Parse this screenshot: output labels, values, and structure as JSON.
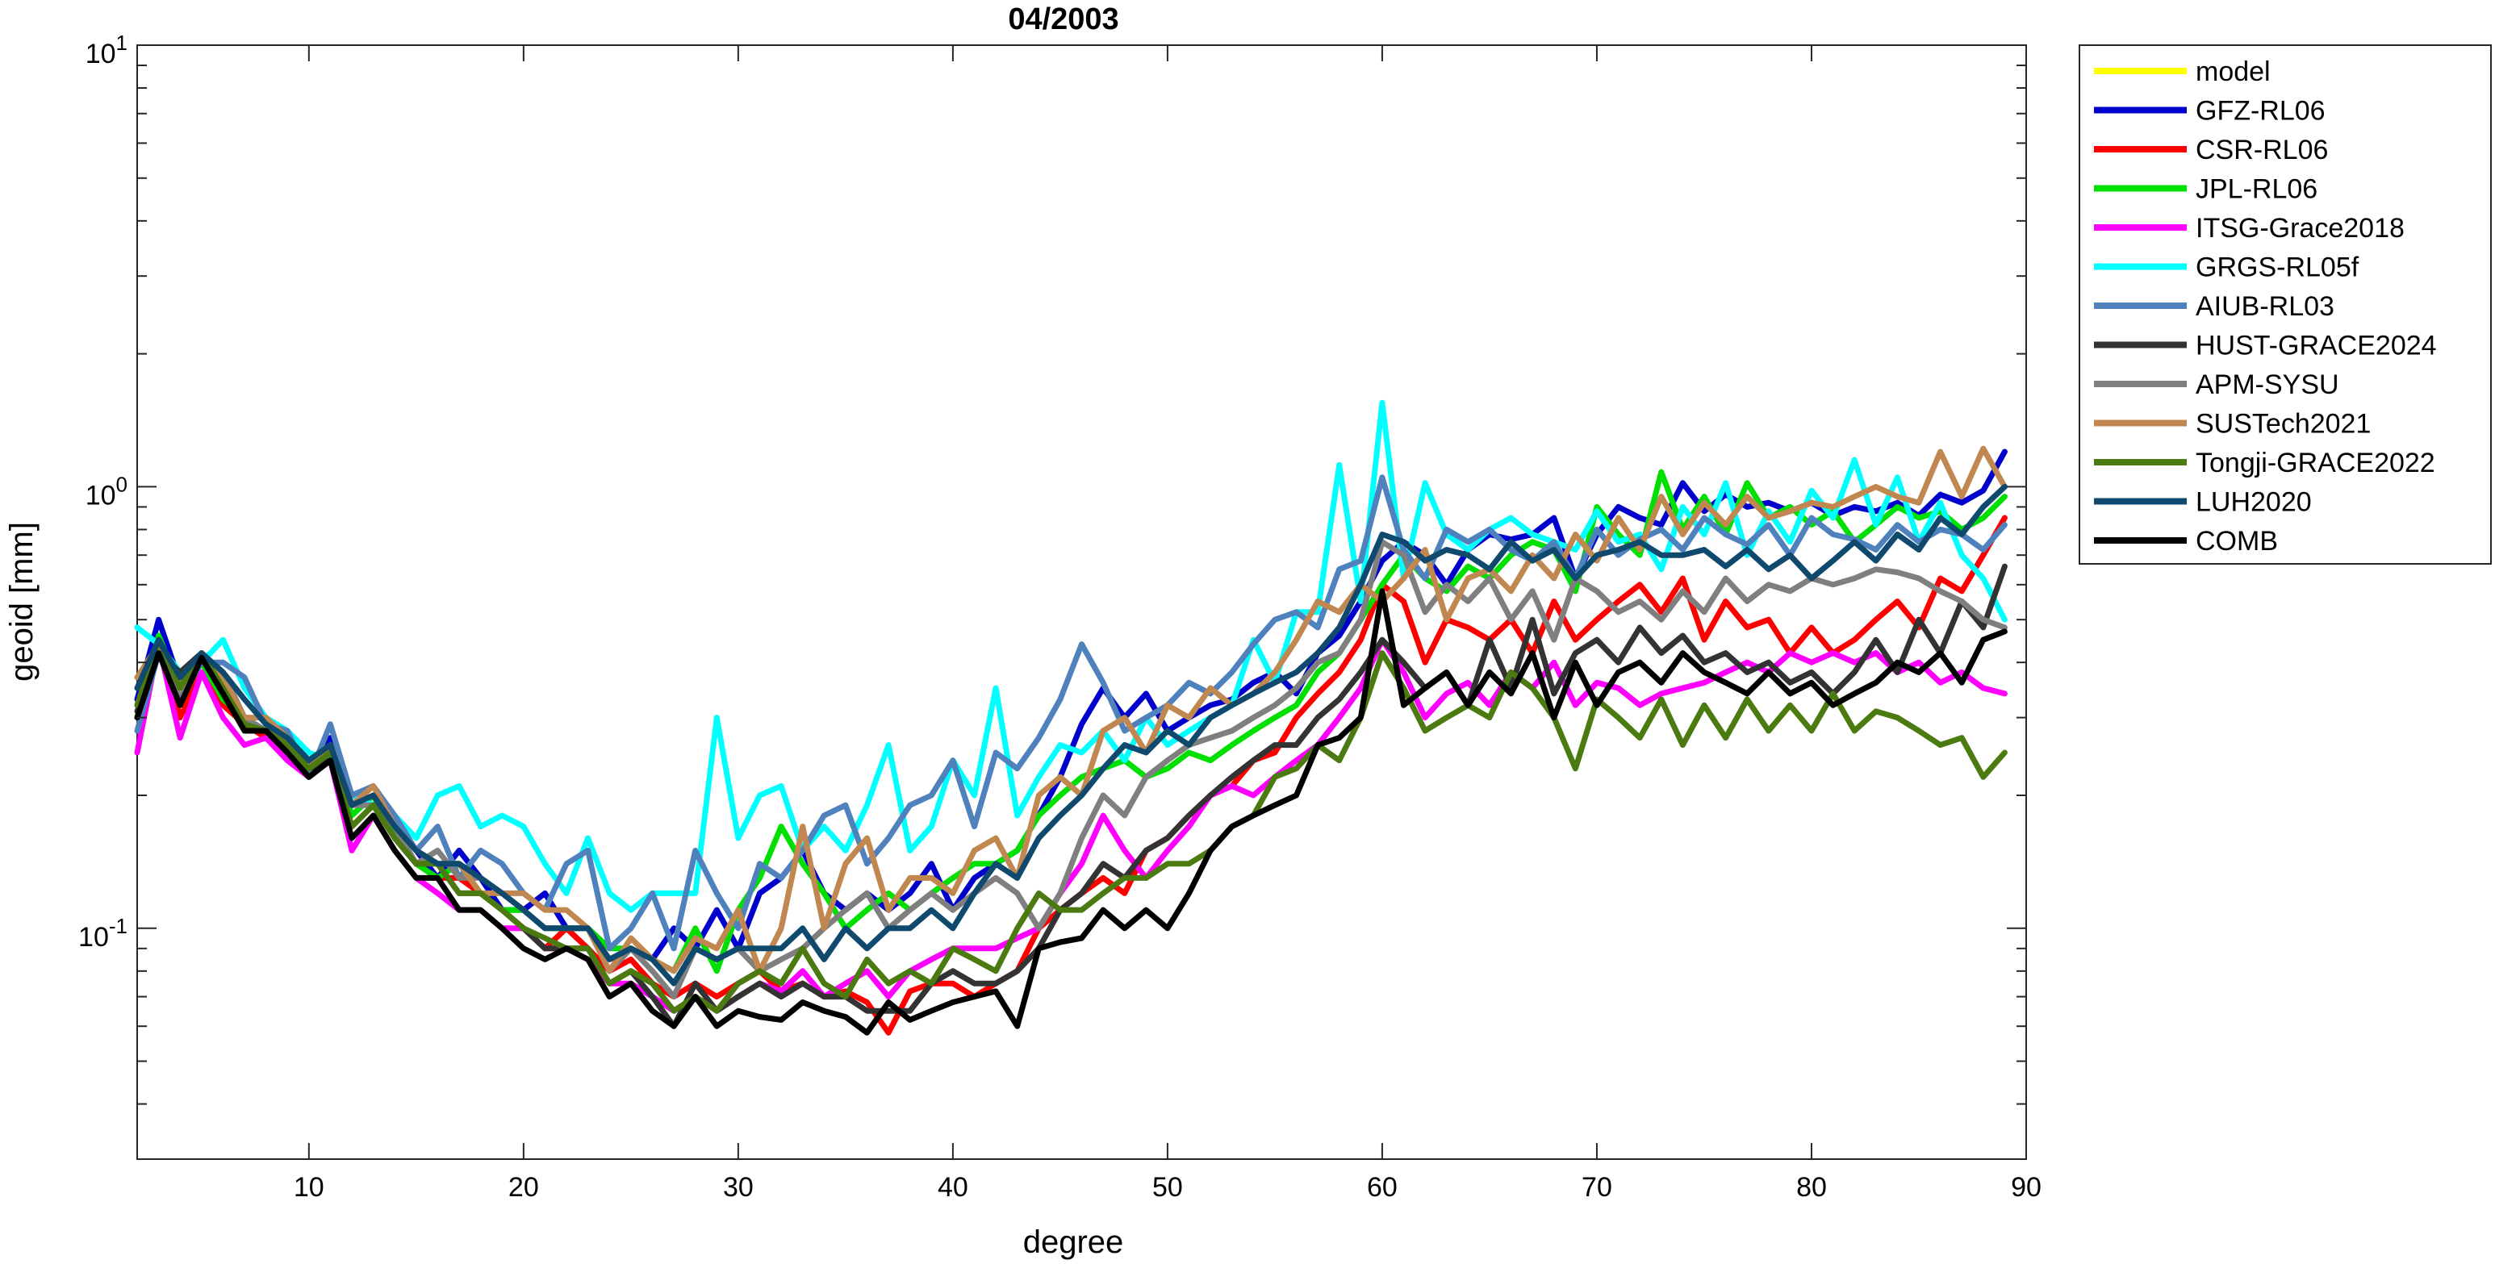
{
  "chart_data": {
    "type": "line",
    "title": "04/2003",
    "xlabel": "degree",
    "ylabel": "geoid [mm]",
    "xlim": [
      2,
      90
    ],
    "ylim": [
      0.03,
      10
    ],
    "yscale": "log",
    "grid": false,
    "legend_position": "outside-right-top",
    "x_ticks": [
      10,
      20,
      30,
      40,
      50,
      60,
      70,
      80,
      90
    ],
    "y_ticks": [
      {
        "value": 0.1,
        "base": "10",
        "exp": "-1"
      },
      {
        "value": 1,
        "base": "10",
        "exp": "0"
      },
      {
        "value": 10,
        "base": "10",
        "exp": "1"
      }
    ],
    "x_start": 2,
    "series": [
      {
        "name": "model",
        "color": "#ffff00",
        "values": []
      },
      {
        "name": "GFZ-RL06",
        "color": "#0000cd",
        "values": [
          0.33,
          0.5,
          0.36,
          0.42,
          0.34,
          0.3,
          0.28,
          0.26,
          0.23,
          0.27,
          0.19,
          0.2,
          0.17,
          0.15,
          0.13,
          0.15,
          0.13,
          0.11,
          0.11,
          0.12,
          0.1,
          0.1,
          0.085,
          0.09,
          0.085,
          0.1,
          0.09,
          0.11,
          0.09,
          0.12,
          0.13,
          0.15,
          0.12,
          0.11,
          0.12,
          0.11,
          0.12,
          0.14,
          0.11,
          0.13,
          0.14,
          0.15,
          0.18,
          0.22,
          0.29,
          0.35,
          0.3,
          0.34,
          0.28,
          0.3,
          0.32,
          0.33,
          0.36,
          0.38,
          0.34,
          0.42,
          0.46,
          0.55,
          0.68,
          0.75,
          0.7,
          0.6,
          0.72,
          0.78,
          0.76,
          0.78,
          0.85,
          0.62,
          0.78,
          0.9,
          0.85,
          0.82,
          1.02,
          0.88,
          0.96,
          0.9,
          0.92,
          0.88,
          0.92,
          0.86,
          0.9,
          0.88,
          0.92,
          0.86,
          0.96,
          0.92,
          0.98,
          1.2
        ]
      },
      {
        "name": "CSR-RL06",
        "color": "#ff0000",
        "values": [
          0.32,
          0.45,
          0.3,
          0.38,
          0.32,
          0.29,
          0.27,
          0.26,
          0.23,
          0.25,
          0.17,
          0.19,
          0.16,
          0.14,
          0.13,
          0.13,
          0.12,
          0.11,
          0.1,
          0.09,
          0.1,
          0.09,
          0.08,
          0.085,
          0.075,
          0.07,
          0.075,
          0.07,
          0.075,
          0.08,
          0.072,
          0.075,
          0.07,
          0.072,
          0.068,
          0.058,
          0.072,
          0.075,
          0.075,
          0.07,
          0.075,
          0.08,
          0.1,
          0.11,
          0.12,
          0.13,
          0.12,
          0.15,
          0.16,
          0.18,
          0.2,
          0.21,
          0.24,
          0.25,
          0.3,
          0.34,
          0.38,
          0.45,
          0.6,
          0.55,
          0.4,
          0.5,
          0.48,
          0.45,
          0.5,
          0.42,
          0.55,
          0.45,
          0.5,
          0.55,
          0.6,
          0.52,
          0.62,
          0.45,
          0.55,
          0.48,
          0.5,
          0.42,
          0.48,
          0.42,
          0.45,
          0.5,
          0.55,
          0.48,
          0.62,
          0.58,
          0.7,
          0.85
        ]
      },
      {
        "name": "JPL-RL06",
        "color": "#00e000",
        "values": [
          0.3,
          0.46,
          0.35,
          0.4,
          0.33,
          0.3,
          0.28,
          0.25,
          0.24,
          0.26,
          0.18,
          0.2,
          0.16,
          0.14,
          0.13,
          0.14,
          0.12,
          0.11,
          0.11,
          0.1,
          0.1,
          0.1,
          0.09,
          0.09,
          0.085,
          0.08,
          0.1,
          0.08,
          0.11,
          0.13,
          0.17,
          0.14,
          0.12,
          0.1,
          0.11,
          0.12,
          0.11,
          0.12,
          0.13,
          0.14,
          0.14,
          0.15,
          0.18,
          0.2,
          0.22,
          0.23,
          0.24,
          0.22,
          0.23,
          0.25,
          0.24,
          0.26,
          0.28,
          0.3,
          0.32,
          0.38,
          0.42,
          0.5,
          0.6,
          0.7,
          0.62,
          0.58,
          0.66,
          0.62,
          0.7,
          0.75,
          0.72,
          0.58,
          0.9,
          0.78,
          0.7,
          1.08,
          0.8,
          0.95,
          0.78,
          1.02,
          0.85,
          0.9,
          0.82,
          0.88,
          0.75,
          0.82,
          0.9,
          0.85,
          0.88,
          0.8,
          0.85,
          0.95
        ]
      },
      {
        "name": "ITSG-Grace2018",
        "color": "#ff00ff",
        "values": [
          0.25,
          0.44,
          0.27,
          0.38,
          0.3,
          0.26,
          0.27,
          0.24,
          0.22,
          0.24,
          0.15,
          0.18,
          0.15,
          0.13,
          0.12,
          0.11,
          0.11,
          0.1,
          0.1,
          0.09,
          0.09,
          0.085,
          0.075,
          0.075,
          0.07,
          0.065,
          0.07,
          0.065,
          0.07,
          0.075,
          0.072,
          0.08,
          0.07,
          0.075,
          0.08,
          0.07,
          0.08,
          0.085,
          0.09,
          0.09,
          0.09,
          0.095,
          0.1,
          0.12,
          0.14,
          0.18,
          0.15,
          0.13,
          0.15,
          0.17,
          0.2,
          0.21,
          0.2,
          0.22,
          0.24,
          0.26,
          0.3,
          0.35,
          0.45,
          0.38,
          0.3,
          0.34,
          0.36,
          0.32,
          0.38,
          0.35,
          0.4,
          0.32,
          0.36,
          0.35,
          0.32,
          0.34,
          0.35,
          0.36,
          0.38,
          0.4,
          0.38,
          0.42,
          0.4,
          0.42,
          0.4,
          0.42,
          0.38,
          0.4,
          0.36,
          0.38,
          0.35,
          0.34
        ]
      },
      {
        "name": "GRGS-RL05f",
        "color": "#00ffff",
        "values": [
          0.48,
          0.44,
          0.38,
          0.4,
          0.45,
          0.35,
          0.3,
          0.28,
          0.25,
          0.24,
          0.2,
          0.19,
          0.18,
          0.16,
          0.2,
          0.21,
          0.17,
          0.18,
          0.17,
          0.14,
          0.12,
          0.16,
          0.12,
          0.11,
          0.12,
          0.12,
          0.12,
          0.3,
          0.16,
          0.2,
          0.21,
          0.15,
          0.17,
          0.15,
          0.19,
          0.26,
          0.15,
          0.17,
          0.24,
          0.2,
          0.35,
          0.18,
          0.22,
          0.26,
          0.25,
          0.28,
          0.24,
          0.3,
          0.26,
          0.28,
          0.3,
          0.32,
          0.45,
          0.36,
          0.52,
          0.52,
          1.12,
          0.55,
          1.55,
          0.62,
          1.02,
          0.78,
          0.72,
          0.8,
          0.85,
          0.78,
          0.75,
          0.72,
          0.88,
          0.75,
          0.78,
          0.65,
          0.9,
          0.78,
          1.02,
          0.7,
          0.88,
          0.75,
          0.98,
          0.85,
          1.15,
          0.82,
          1.05,
          0.75,
          0.92,
          0.7,
          0.62,
          0.5
        ]
      },
      {
        "name": "AIUB-RL03",
        "color": "#4f81bd",
        "values": [
          0.28,
          0.42,
          0.33,
          0.4,
          0.4,
          0.37,
          0.29,
          0.28,
          0.22,
          0.29,
          0.2,
          0.21,
          0.18,
          0.15,
          0.17,
          0.13,
          0.15,
          0.14,
          0.12,
          0.11,
          0.14,
          0.15,
          0.09,
          0.1,
          0.12,
          0.09,
          0.15,
          0.12,
          0.1,
          0.14,
          0.13,
          0.15,
          0.18,
          0.19,
          0.14,
          0.16,
          0.19,
          0.2,
          0.24,
          0.17,
          0.25,
          0.23,
          0.27,
          0.33,
          0.44,
          0.36,
          0.28,
          0.3,
          0.32,
          0.36,
          0.34,
          0.38,
          0.44,
          0.5,
          0.52,
          0.48,
          0.65,
          0.68,
          1.05,
          0.72,
          0.62,
          0.8,
          0.75,
          0.8,
          0.72,
          0.68,
          0.75,
          0.62,
          0.8,
          0.7,
          0.76,
          0.8,
          0.72,
          0.85,
          0.78,
          0.74,
          0.82,
          0.7,
          0.85,
          0.78,
          0.76,
          0.72,
          0.82,
          0.75,
          0.8,
          0.78,
          0.72,
          0.82
        ]
      },
      {
        "name": "HUST-GRACE2024",
        "color": "#333333",
        "values": [
          0.31,
          0.42,
          0.38,
          0.42,
          0.35,
          0.29,
          0.28,
          0.26,
          0.23,
          0.24,
          0.17,
          0.19,
          0.16,
          0.14,
          0.14,
          0.12,
          0.12,
          0.11,
          0.1,
          0.09,
          0.09,
          0.09,
          0.075,
          0.08,
          0.07,
          0.06,
          0.075,
          0.065,
          0.07,
          0.075,
          0.07,
          0.075,
          0.07,
          0.07,
          0.065,
          0.065,
          0.065,
          0.075,
          0.08,
          0.075,
          0.075,
          0.08,
          0.09,
          0.11,
          0.12,
          0.14,
          0.13,
          0.15,
          0.16,
          0.18,
          0.2,
          0.22,
          0.24,
          0.26,
          0.26,
          0.3,
          0.33,
          0.38,
          0.45,
          0.4,
          0.35,
          0.38,
          0.32,
          0.45,
          0.35,
          0.5,
          0.34,
          0.42,
          0.45,
          0.4,
          0.48,
          0.42,
          0.46,
          0.4,
          0.42,
          0.38,
          0.4,
          0.36,
          0.38,
          0.34,
          0.38,
          0.45,
          0.38,
          0.5,
          0.42,
          0.55,
          0.48,
          0.66
        ]
      },
      {
        "name": "APM-SYSU",
        "color": "#7f7f7f",
        "values": [
          0.35,
          0.45,
          0.33,
          0.42,
          0.38,
          0.3,
          0.28,
          0.27,
          0.24,
          0.26,
          0.19,
          0.19,
          0.17,
          0.14,
          0.15,
          0.13,
          0.13,
          0.12,
          0.11,
          0.1,
          0.1,
          0.1,
          0.08,
          0.09,
          0.08,
          0.07,
          0.09,
          0.085,
          0.09,
          0.08,
          0.085,
          0.09,
          0.1,
          0.11,
          0.12,
          0.1,
          0.11,
          0.12,
          0.11,
          0.12,
          0.13,
          0.12,
          0.1,
          0.12,
          0.16,
          0.2,
          0.18,
          0.22,
          0.24,
          0.26,
          0.27,
          0.28,
          0.3,
          0.32,
          0.35,
          0.4,
          0.42,
          0.5,
          0.75,
          0.7,
          0.52,
          0.6,
          0.55,
          0.62,
          0.5,
          0.58,
          0.45,
          0.62,
          0.58,
          0.52,
          0.55,
          0.5,
          0.58,
          0.52,
          0.62,
          0.55,
          0.6,
          0.58,
          0.62,
          0.6,
          0.62,
          0.65,
          0.64,
          0.62,
          0.58,
          0.55,
          0.5,
          0.48
        ]
      },
      {
        "name": "SUSTech2021",
        "color": "#c08850",
        "values": [
          0.37,
          0.44,
          0.36,
          0.42,
          0.37,
          0.3,
          0.3,
          0.27,
          0.23,
          0.26,
          0.19,
          0.21,
          0.17,
          0.15,
          0.14,
          0.14,
          0.12,
          0.12,
          0.12,
          0.11,
          0.11,
          0.1,
          0.08,
          0.095,
          0.085,
          0.08,
          0.095,
          0.09,
          0.11,
          0.08,
          0.1,
          0.17,
          0.1,
          0.14,
          0.16,
          0.11,
          0.13,
          0.13,
          0.12,
          0.15,
          0.16,
          0.13,
          0.2,
          0.22,
          0.2,
          0.28,
          0.3,
          0.25,
          0.32,
          0.3,
          0.35,
          0.32,
          0.34,
          0.38,
          0.45,
          0.55,
          0.52,
          0.6,
          0.55,
          0.62,
          0.72,
          0.5,
          0.62,
          0.65,
          0.58,
          0.7,
          0.62,
          0.78,
          0.68,
          0.85,
          0.72,
          0.95,
          0.78,
          0.92,
          0.82,
          0.95,
          0.85,
          0.88,
          0.92,
          0.9,
          0.95,
          1.0,
          0.95,
          0.92,
          1.2,
          0.95,
          1.22,
          1.0
        ]
      },
      {
        "name": "Tongji-GRACE2022",
        "color": "#4a7a10",
        "values": [
          0.32,
          0.45,
          0.35,
          0.42,
          0.35,
          0.29,
          0.28,
          0.26,
          0.23,
          0.25,
          0.17,
          0.19,
          0.16,
          0.14,
          0.14,
          0.12,
          0.12,
          0.11,
          0.1,
          0.095,
          0.09,
          0.09,
          0.075,
          0.08,
          0.075,
          0.065,
          0.07,
          0.065,
          0.075,
          0.08,
          0.075,
          0.09,
          0.075,
          0.07,
          0.085,
          0.075,
          0.08,
          0.075,
          0.09,
          0.085,
          0.08,
          0.1,
          0.12,
          0.11,
          0.11,
          0.12,
          0.13,
          0.13,
          0.14,
          0.14,
          0.15,
          0.17,
          0.18,
          0.22,
          0.23,
          0.26,
          0.24,
          0.3,
          0.42,
          0.35,
          0.28,
          0.3,
          0.32,
          0.3,
          0.38,
          0.35,
          0.3,
          0.23,
          0.33,
          0.3,
          0.27,
          0.33,
          0.26,
          0.32,
          0.27,
          0.33,
          0.28,
          0.32,
          0.28,
          0.34,
          0.28,
          0.31,
          0.3,
          0.28,
          0.26,
          0.27,
          0.22,
          0.25
        ]
      },
      {
        "name": "LUH2020",
        "color": "#0f4a6e",
        "values": [
          0.35,
          0.45,
          0.37,
          0.42,
          0.38,
          0.33,
          0.29,
          0.27,
          0.24,
          0.26,
          0.19,
          0.2,
          0.17,
          0.15,
          0.14,
          0.14,
          0.13,
          0.12,
          0.11,
          0.1,
          0.1,
          0.1,
          0.085,
          0.09,
          0.085,
          0.075,
          0.09,
          0.085,
          0.09,
          0.09,
          0.09,
          0.1,
          0.085,
          0.1,
          0.09,
          0.1,
          0.1,
          0.11,
          0.1,
          0.12,
          0.14,
          0.13,
          0.16,
          0.18,
          0.2,
          0.23,
          0.26,
          0.25,
          0.28,
          0.26,
          0.3,
          0.32,
          0.34,
          0.36,
          0.38,
          0.42,
          0.48,
          0.6,
          0.78,
          0.75,
          0.68,
          0.72,
          0.7,
          0.65,
          0.75,
          0.68,
          0.72,
          0.62,
          0.7,
          0.72,
          0.75,
          0.7,
          0.7,
          0.72,
          0.66,
          0.72,
          0.65,
          0.7,
          0.62,
          0.68,
          0.75,
          0.68,
          0.78,
          0.72,
          0.85,
          0.78,
          0.9,
          1.0
        ]
      },
      {
        "name": "COMB",
        "color": "#000000",
        "values": [
          0.3,
          0.42,
          0.32,
          0.41,
          0.34,
          0.28,
          0.28,
          0.25,
          0.22,
          0.24,
          0.16,
          0.18,
          0.15,
          0.13,
          0.13,
          0.11,
          0.11,
          0.1,
          0.09,
          0.085,
          0.09,
          0.085,
          0.07,
          0.075,
          0.065,
          0.06,
          0.07,
          0.06,
          0.065,
          0.063,
          0.062,
          0.068,
          0.065,
          0.063,
          0.058,
          0.068,
          0.062,
          0.065,
          0.068,
          0.07,
          0.072,
          0.06,
          0.09,
          0.093,
          0.095,
          0.11,
          0.1,
          0.11,
          0.1,
          0.12,
          0.15,
          0.17,
          0.18,
          0.19,
          0.2,
          0.26,
          0.27,
          0.3,
          0.58,
          0.32,
          0.35,
          0.38,
          0.32,
          0.38,
          0.34,
          0.42,
          0.3,
          0.4,
          0.32,
          0.38,
          0.4,
          0.36,
          0.42,
          0.38,
          0.36,
          0.34,
          0.38,
          0.34,
          0.36,
          0.32,
          0.34,
          0.36,
          0.4,
          0.38,
          0.42,
          0.36,
          0.45,
          0.47
        ]
      }
    ]
  }
}
